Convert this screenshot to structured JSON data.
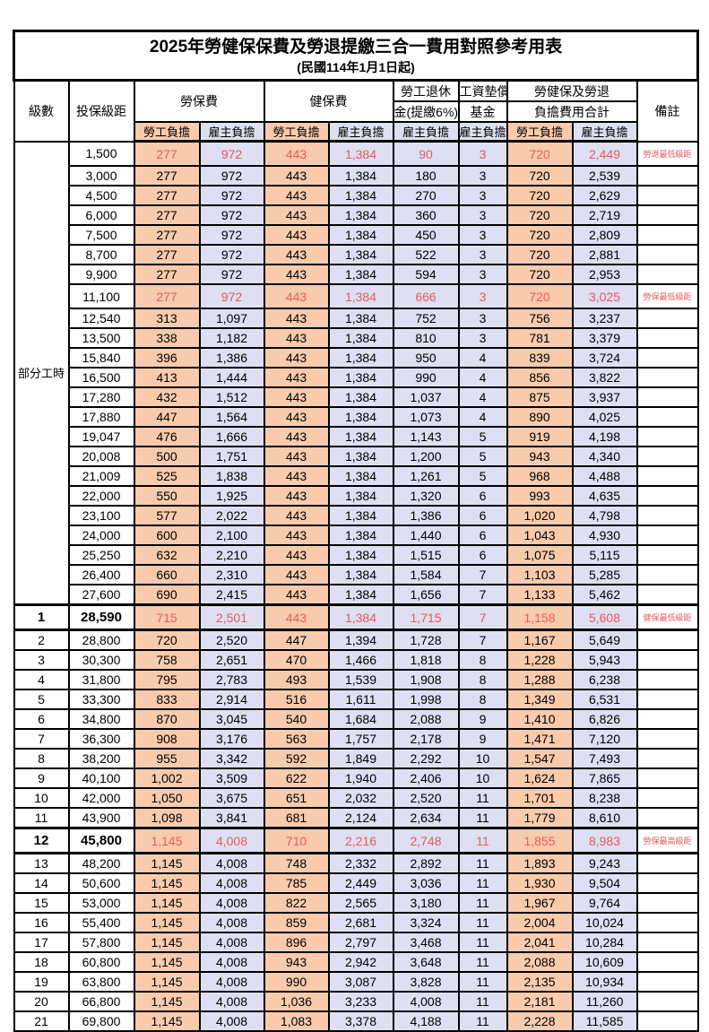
{
  "title": "2025年勞健保保費及勞退提繳三合一費用對照參考用表",
  "subtitle": "(民國114年1月1日起)",
  "header": {
    "level": "級數",
    "bracket": "投保級距",
    "labor_insurance": "勞保費",
    "health_insurance": "健保費",
    "pension_line1": "勞工退休",
    "pension_line2": "金(提繳6%)",
    "wage_fund_line1": "工資墊償",
    "wage_fund_line2": "基金",
    "total_line1": "勞健保及勞退",
    "total_line2": "負擔費用合計",
    "remarks": "備註",
    "employee": "勞工負擔",
    "employer": "雇主負擔"
  },
  "part_time": {
    "label": "部分工時",
    "row_span": 23
  },
  "colors": {
    "employee_bg": "#F8CBAD",
    "employer_bg": "#DEDFF2",
    "highlight_text": "#E95A5A",
    "grid": "#000000"
  },
  "rows": [
    {
      "level": "",
      "bracket": "1,500",
      "values": [
        "277",
        "972",
        "443",
        "1,384",
        "90",
        "3",
        "720",
        "2,449"
      ],
      "note": "勞退最低級距",
      "red": true,
      "bold": false
    },
    {
      "level": "",
      "bracket": "3,000",
      "values": [
        "277",
        "972",
        "443",
        "1,384",
        "180",
        "3",
        "720",
        "2,539"
      ],
      "note": "",
      "red": false,
      "bold": false
    },
    {
      "level": "",
      "bracket": "4,500",
      "values": [
        "277",
        "972",
        "443",
        "1,384",
        "270",
        "3",
        "720",
        "2,629"
      ],
      "note": "",
      "red": false,
      "bold": false
    },
    {
      "level": "",
      "bracket": "6,000",
      "values": [
        "277",
        "972",
        "443",
        "1,384",
        "360",
        "3",
        "720",
        "2,719"
      ],
      "note": "",
      "red": false,
      "bold": false
    },
    {
      "level": "",
      "bracket": "7,500",
      "values": [
        "277",
        "972",
        "443",
        "1,384",
        "450",
        "3",
        "720",
        "2,809"
      ],
      "note": "",
      "red": false,
      "bold": false
    },
    {
      "level": "",
      "bracket": "8,700",
      "values": [
        "277",
        "972",
        "443",
        "1,384",
        "522",
        "3",
        "720",
        "2,881"
      ],
      "note": "",
      "red": false,
      "bold": false
    },
    {
      "level": "",
      "bracket": "9,900",
      "values": [
        "277",
        "972",
        "443",
        "1,384",
        "594",
        "3",
        "720",
        "2,953"
      ],
      "note": "",
      "red": false,
      "bold": false
    },
    {
      "level": "",
      "bracket": "11,100",
      "values": [
        "277",
        "972",
        "443",
        "1,384",
        "666",
        "3",
        "720",
        "3,025"
      ],
      "note": "勞保最低級距",
      "red": true,
      "bold": false
    },
    {
      "level": "",
      "bracket": "12,540",
      "values": [
        "313",
        "1,097",
        "443",
        "1,384",
        "752",
        "3",
        "756",
        "3,237"
      ],
      "note": "",
      "red": false,
      "bold": false
    },
    {
      "level": "",
      "bracket": "13,500",
      "values": [
        "338",
        "1,182",
        "443",
        "1,384",
        "810",
        "3",
        "781",
        "3,379"
      ],
      "note": "",
      "red": false,
      "bold": false
    },
    {
      "level": "",
      "bracket": "15,840",
      "values": [
        "396",
        "1,386",
        "443",
        "1,384",
        "950",
        "4",
        "839",
        "3,724"
      ],
      "note": "",
      "red": false,
      "bold": false
    },
    {
      "level": "",
      "bracket": "16,500",
      "values": [
        "413",
        "1,444",
        "443",
        "1,384",
        "990",
        "4",
        "856",
        "3,822"
      ],
      "note": "",
      "red": false,
      "bold": false
    },
    {
      "level": "",
      "bracket": "17,280",
      "values": [
        "432",
        "1,512",
        "443",
        "1,384",
        "1,037",
        "4",
        "875",
        "3,937"
      ],
      "note": "",
      "red": false,
      "bold": false
    },
    {
      "level": "",
      "bracket": "17,880",
      "values": [
        "447",
        "1,564",
        "443",
        "1,384",
        "1,073",
        "4",
        "890",
        "4,025"
      ],
      "note": "",
      "red": false,
      "bold": false
    },
    {
      "level": "",
      "bracket": "19,047",
      "values": [
        "476",
        "1,666",
        "443",
        "1,384",
        "1,143",
        "5",
        "919",
        "4,198"
      ],
      "note": "",
      "red": false,
      "bold": false
    },
    {
      "level": "",
      "bracket": "20,008",
      "values": [
        "500",
        "1,751",
        "443",
        "1,384",
        "1,200",
        "5",
        "943",
        "4,340"
      ],
      "note": "",
      "red": false,
      "bold": false
    },
    {
      "level": "",
      "bracket": "21,009",
      "values": [
        "525",
        "1,838",
        "443",
        "1,384",
        "1,261",
        "5",
        "968",
        "4,488"
      ],
      "note": "",
      "red": false,
      "bold": false
    },
    {
      "level": "",
      "bracket": "22,000",
      "values": [
        "550",
        "1,925",
        "443",
        "1,384",
        "1,320",
        "6",
        "993",
        "4,635"
      ],
      "note": "",
      "red": false,
      "bold": false
    },
    {
      "level": "",
      "bracket": "23,100",
      "values": [
        "577",
        "2,022",
        "443",
        "1,384",
        "1,386",
        "6",
        "1,020",
        "4,798"
      ],
      "note": "",
      "red": false,
      "bold": false
    },
    {
      "level": "",
      "bracket": "24,000",
      "values": [
        "600",
        "2,100",
        "443",
        "1,384",
        "1,440",
        "6",
        "1,043",
        "4,930"
      ],
      "note": "",
      "red": false,
      "bold": false
    },
    {
      "level": "",
      "bracket": "25,250",
      "values": [
        "632",
        "2,210",
        "443",
        "1,384",
        "1,515",
        "6",
        "1,075",
        "5,115"
      ],
      "note": "",
      "red": false,
      "bold": false
    },
    {
      "level": "",
      "bracket": "26,400",
      "values": [
        "660",
        "2,310",
        "443",
        "1,384",
        "1,584",
        "7",
        "1,103",
        "5,285"
      ],
      "note": "",
      "red": false,
      "bold": false
    },
    {
      "level": "",
      "bracket": "27,600",
      "values": [
        "690",
        "2,415",
        "443",
        "1,384",
        "1,656",
        "7",
        "1,133",
        "5,462"
      ],
      "note": "",
      "red": false,
      "bold": false
    },
    {
      "level": "1",
      "bracket": "28,590",
      "values": [
        "715",
        "2,501",
        "443",
        "1,384",
        "1,715",
        "7",
        "1,158",
        "5,608"
      ],
      "note": "健保最低級距",
      "red": true,
      "bold": true
    },
    {
      "level": "2",
      "bracket": "28,800",
      "values": [
        "720",
        "2,520",
        "447",
        "1,394",
        "1,728",
        "7",
        "1,167",
        "5,649"
      ],
      "note": "",
      "red": false,
      "bold": false
    },
    {
      "level": "3",
      "bracket": "30,300",
      "values": [
        "758",
        "2,651",
        "470",
        "1,466",
        "1,818",
        "8",
        "1,228",
        "5,943"
      ],
      "note": "",
      "red": false,
      "bold": false
    },
    {
      "level": "4",
      "bracket": "31,800",
      "values": [
        "795",
        "2,783",
        "493",
        "1,539",
        "1,908",
        "8",
        "1,288",
        "6,238"
      ],
      "note": "",
      "red": false,
      "bold": false
    },
    {
      "level": "5",
      "bracket": "33,300",
      "values": [
        "833",
        "2,914",
        "516",
        "1,611",
        "1,998",
        "8",
        "1,349",
        "6,531"
      ],
      "note": "",
      "red": false,
      "bold": false
    },
    {
      "level": "6",
      "bracket": "34,800",
      "values": [
        "870",
        "3,045",
        "540",
        "1,684",
        "2,088",
        "9",
        "1,410",
        "6,826"
      ],
      "note": "",
      "red": false,
      "bold": false
    },
    {
      "level": "7",
      "bracket": "36,300",
      "values": [
        "908",
        "3,176",
        "563",
        "1,757",
        "2,178",
        "9",
        "1,471",
        "7,120"
      ],
      "note": "",
      "red": false,
      "bold": false
    },
    {
      "level": "8",
      "bracket": "38,200",
      "values": [
        "955",
        "3,342",
        "592",
        "1,849",
        "2,292",
        "10",
        "1,547",
        "7,493"
      ],
      "note": "",
      "red": false,
      "bold": false
    },
    {
      "level": "9",
      "bracket": "40,100",
      "values": [
        "1,002",
        "3,509",
        "622",
        "1,940",
        "2,406",
        "10",
        "1,624",
        "7,865"
      ],
      "note": "",
      "red": false,
      "bold": false
    },
    {
      "level": "10",
      "bracket": "42,000",
      "values": [
        "1,050",
        "3,675",
        "651",
        "2,032",
        "2,520",
        "11",
        "1,701",
        "8,238"
      ],
      "note": "",
      "red": false,
      "bold": false
    },
    {
      "level": "11",
      "bracket": "43,900",
      "values": [
        "1,098",
        "3,841",
        "681",
        "2,124",
        "2,634",
        "11",
        "1,779",
        "8,610"
      ],
      "note": "",
      "red": false,
      "bold": false
    },
    {
      "level": "12",
      "bracket": "45,800",
      "values": [
        "1,145",
        "4,008",
        "710",
        "2,216",
        "2,748",
        "11",
        "1,855",
        "8,983"
      ],
      "note": "勞保最高級距",
      "red": true,
      "bold": true
    },
    {
      "level": "13",
      "bracket": "48,200",
      "values": [
        "1,145",
        "4,008",
        "748",
        "2,332",
        "2,892",
        "11",
        "1,893",
        "9,243"
      ],
      "note": "",
      "red": false,
      "bold": false
    },
    {
      "level": "14",
      "bracket": "50,600",
      "values": [
        "1,145",
        "4,008",
        "785",
        "2,449",
        "3,036",
        "11",
        "1,930",
        "9,504"
      ],
      "note": "",
      "red": false,
      "bold": false
    },
    {
      "level": "15",
      "bracket": "53,000",
      "values": [
        "1,145",
        "4,008",
        "822",
        "2,565",
        "3,180",
        "11",
        "1,967",
        "9,764"
      ],
      "note": "",
      "red": false,
      "bold": false
    },
    {
      "level": "16",
      "bracket": "55,400",
      "values": [
        "1,145",
        "4,008",
        "859",
        "2,681",
        "3,324",
        "11",
        "2,004",
        "10,024"
      ],
      "note": "",
      "red": false,
      "bold": false
    },
    {
      "level": "17",
      "bracket": "57,800",
      "values": [
        "1,145",
        "4,008",
        "896",
        "2,797",
        "3,468",
        "11",
        "2,041",
        "10,284"
      ],
      "note": "",
      "red": false,
      "bold": false
    },
    {
      "level": "18",
      "bracket": "60,800",
      "values": [
        "1,145",
        "4,008",
        "943",
        "2,942",
        "3,648",
        "11",
        "2,088",
        "10,609"
      ],
      "note": "",
      "red": false,
      "bold": false
    },
    {
      "level": "19",
      "bracket": "63,800",
      "values": [
        "1,145",
        "4,008",
        "990",
        "3,087",
        "3,828",
        "11",
        "2,135",
        "10,934"
      ],
      "note": "",
      "red": false,
      "bold": false
    },
    {
      "level": "20",
      "bracket": "66,800",
      "values": [
        "1,145",
        "4,008",
        "1,036",
        "3,233",
        "4,008",
        "11",
        "2,181",
        "11,260"
      ],
      "note": "",
      "red": false,
      "bold": false
    },
    {
      "level": "21",
      "bracket": "69,800",
      "values": [
        "1,145",
        "4,008",
        "1,083",
        "3,378",
        "4,188",
        "11",
        "2,228",
        "11,585"
      ],
      "note": "",
      "red": false,
      "bold": false
    }
  ]
}
